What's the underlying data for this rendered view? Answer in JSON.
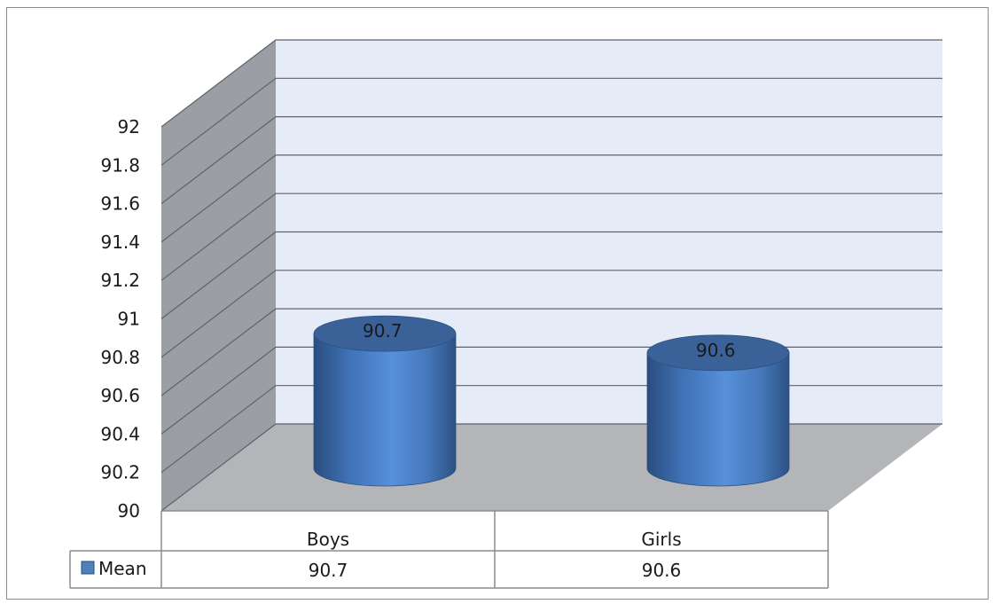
{
  "chart_data": {
    "type": "bar",
    "bar_shape": "cylinder-3d",
    "title": "",
    "xlabel": "",
    "ylabel": "",
    "categories": [
      "Boys",
      "Girls"
    ],
    "series": [
      {
        "name": "Mean",
        "values": [
          90.7,
          90.6
        ],
        "color": "#4f81bd"
      }
    ],
    "ylim": [
      90,
      92
    ],
    "yticks": [
      "92",
      "91.8",
      "91.6",
      "91.4",
      "91.2",
      "91",
      "90.8",
      "90.6",
      "90.4",
      "90.2",
      "90"
    ],
    "data_labels": [
      "90.7",
      "90.6"
    ],
    "table_values": [
      "90.7",
      "90.6"
    ],
    "grid": true,
    "legend": "data-table"
  },
  "colors": {
    "back_wall": "#e6ecf7",
    "side_wall": "#9b9fa5",
    "floor": "#b3b5b8",
    "grid": "#5e6367",
    "bar_main": "#4a7fc4",
    "bar_top": "#3a6298"
  }
}
